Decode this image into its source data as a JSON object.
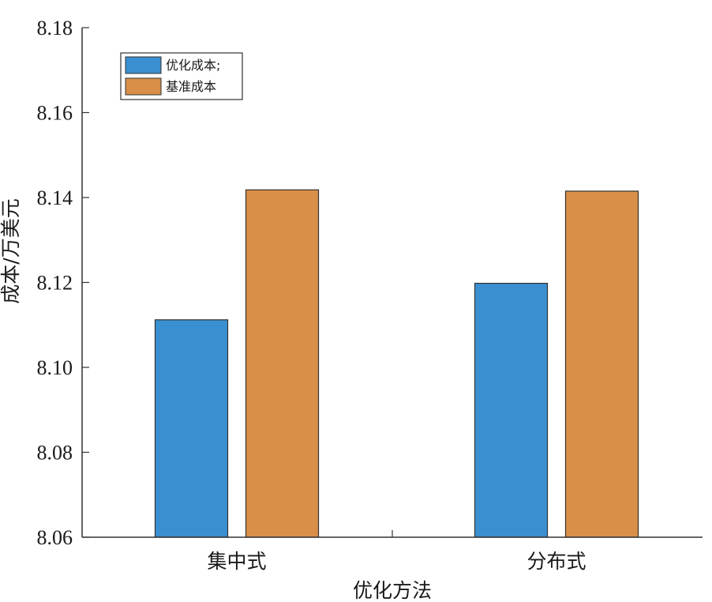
{
  "chart_data": {
    "type": "bar",
    "categories": [
      "集中式",
      "分布式"
    ],
    "series": [
      {
        "name": "优化成本;",
        "color": "#3a8fd0",
        "values": [
          8.1112,
          8.1198
        ]
      },
      {
        "name": "基准成本",
        "color": "#d98f48",
        "values": [
          8.1418,
          8.1415
        ]
      }
    ],
    "xlabel": "优化方法",
    "ylabel": "成本/万美元",
    "ylim": [
      8.06,
      8.18
    ],
    "yticks": [
      "8.06",
      "8.08",
      "8.10",
      "8.12",
      "8.14",
      "8.16",
      "8.18"
    ],
    "grid": false,
    "legend_position": "top-left"
  }
}
